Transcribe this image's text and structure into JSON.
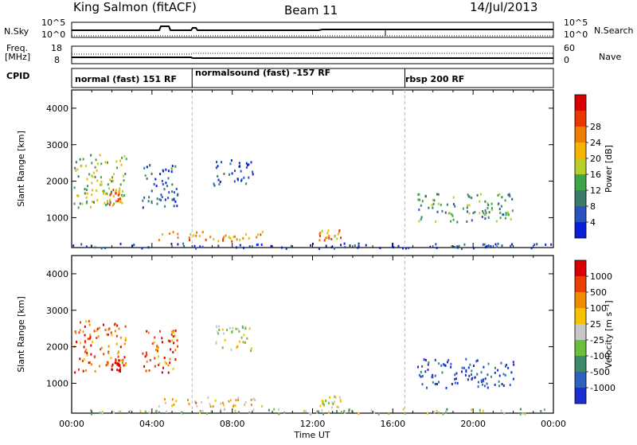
{
  "header": {
    "station": "King Salmon (fitACF)",
    "beam": "Beam 11",
    "date": "14/Jul/2013"
  },
  "top_strip": {
    "left_labels": [
      "N.Sky",
      "Freq.",
      "[MHz]",
      "CPID"
    ],
    "right_labels": [
      "N.Search",
      "Nave"
    ],
    "sky_ticks": [
      "10^5",
      "10^0"
    ],
    "freq_ticks": [
      "18",
      "8"
    ],
    "search_ticks": [
      "10^5",
      "10^0"
    ],
    "nave_ticks": [
      "60",
      "0"
    ]
  },
  "cpid": [
    {
      "label": "normal (fast) 151 RF",
      "start_hour": 0.0,
      "end_hour": 6.0
    },
    {
      "label": "normalsound (fast) -157 RF",
      "start_hour": 6.0,
      "end_hour": 16.6
    },
    {
      "label": "rbsp 200 RF",
      "start_hour": 16.6,
      "end_hour": 24.0
    }
  ],
  "axes": {
    "x_ticks": [
      "00:00",
      "04:00",
      "08:00",
      "12:00",
      "16:00",
      "20:00",
      "00:00"
    ],
    "x_label": "Time UT",
    "y_label": "Slant Range [km]",
    "y_ticks": [
      "1000",
      "2000",
      "3000",
      "4000"
    ]
  },
  "colorbars": {
    "power": {
      "label": "Power [dB]",
      "ticks": [
        "4",
        "8",
        "12",
        "16",
        "20",
        "24",
        "28"
      ],
      "colors": [
        "#0a1fd8",
        "#2a52c0",
        "#3a7a6a",
        "#3fa34a",
        "#b8cf2a",
        "#f5b400",
        "#f07c00",
        "#e83a00",
        "#d80000"
      ]
    },
    "velocity": {
      "label": "Velocity [m s⁻¹]",
      "ticks": [
        "1000",
        "500",
        "100",
        "25",
        "-25",
        "-100",
        "-500",
        "-1000"
      ],
      "colors": [
        "#1a2fd0",
        "#2e62c0",
        "#3c8a6a",
        "#6ac03c",
        "#c8c8c8",
        "#f5c400",
        "#f08c00",
        "#e84000",
        "#d80000"
      ]
    }
  },
  "chart_data": [
    {
      "type": "heatmap",
      "title": "Power",
      "xlabel": "Time UT",
      "ylabel": "Slant Range [km]",
      "xlim": [
        0,
        24
      ],
      "ylim": [
        180,
        4500
      ],
      "colorbar_label": "Power [dB]",
      "patches": [
        {
          "t0": 0.1,
          "t1": 2.7,
          "r0": 1300,
          "r1": 2750,
          "level": 0.45
        },
        {
          "t0": 1.8,
          "t1": 2.4,
          "r0": 1350,
          "r1": 1800,
          "level": 0.75
        },
        {
          "t0": 3.5,
          "t1": 5.3,
          "r0": 1300,
          "r1": 2500,
          "level": 0.2
        },
        {
          "t0": 4.2,
          "t1": 9.5,
          "r0": 380,
          "r1": 650,
          "level": 0.7
        },
        {
          "t0": 7.0,
          "t1": 9.0,
          "r0": 1900,
          "r1": 2600,
          "level": 0.15
        },
        {
          "t0": 12.3,
          "t1": 13.4,
          "r0": 400,
          "r1": 700,
          "level": 0.7
        },
        {
          "t0": 17.2,
          "t1": 22.0,
          "r0": 900,
          "r1": 1700,
          "level": 0.35
        },
        {
          "t0": 0.0,
          "t1": 24.0,
          "r0": 180,
          "r1": 320,
          "level": 0.1
        }
      ]
    },
    {
      "type": "heatmap",
      "title": "Velocity",
      "xlabel": "Time UT",
      "ylabel": "Slant Range [km]",
      "xlim": [
        0,
        24
      ],
      "ylim": [
        180,
        4500
      ],
      "colorbar_label": "Velocity [m s⁻¹]",
      "patches": [
        {
          "t0": 0.1,
          "t1": 2.7,
          "r0": 1300,
          "r1": 2750,
          "level": 0.78
        },
        {
          "t0": 1.9,
          "t1": 2.4,
          "r0": 1350,
          "r1": 1700,
          "level": 0.95
        },
        {
          "t0": 3.5,
          "t1": 5.3,
          "r0": 1300,
          "r1": 2500,
          "level": 0.8
        },
        {
          "t0": 4.2,
          "t1": 9.5,
          "r0": 380,
          "r1": 650,
          "level": 0.62
        },
        {
          "t0": 7.0,
          "t1": 9.0,
          "r0": 1900,
          "r1": 2600,
          "level": 0.5
        },
        {
          "t0": 12.3,
          "t1": 13.4,
          "r0": 350,
          "r1": 700,
          "level": 0.47
        },
        {
          "t0": 17.2,
          "t1": 22.0,
          "r0": 900,
          "r1": 1700,
          "level": 0.1
        },
        {
          "t0": 0.0,
          "t1": 24.0,
          "r0": 180,
          "r1": 320,
          "level": 0.45
        }
      ]
    }
  ]
}
